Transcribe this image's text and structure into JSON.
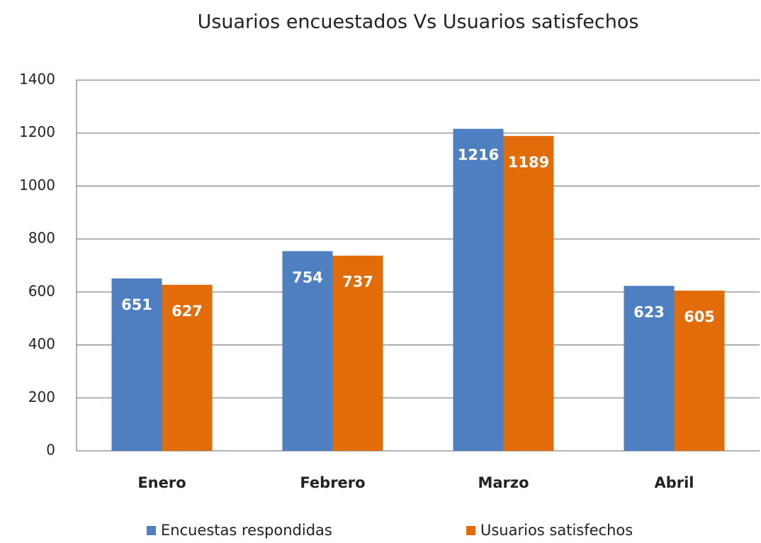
{
  "chart_data": {
    "type": "bar",
    "title": "Usuarios encuestados Vs Usuarios satisfechos",
    "categories": [
      "Enero",
      "Febrero",
      "Marzo",
      "Abril"
    ],
    "series": [
      {
        "name": "Encuestas respondidas",
        "color": "#4e7fc1",
        "values": [
          651,
          754,
          1216,
          623
        ]
      },
      {
        "name": "Usuarios satisfechos",
        "color": "#e36c0a",
        "values": [
          627,
          737,
          1189,
          605
        ]
      }
    ],
    "ylim": [
      0,
      1400
    ],
    "yticks": [
      0,
      200,
      400,
      600,
      800,
      1000,
      1200,
      1400
    ],
    "grid": true,
    "legend": "bottom"
  }
}
